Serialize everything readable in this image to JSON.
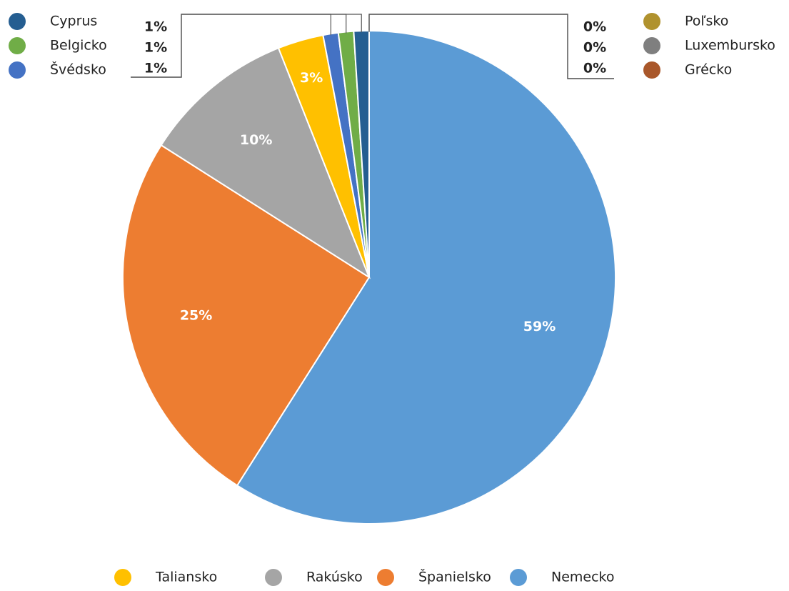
{
  "chart_data": {
    "type": "pie",
    "categories": [
      "Nemecko",
      "Španielsko",
      "Rakúsko",
      "Taliansko",
      "Švédsko",
      "Belgicko",
      "Cyprus",
      "Poľsko",
      "Luxembursko",
      "Grécko"
    ],
    "values": [
      59,
      25,
      10,
      3,
      1,
      1,
      1,
      0,
      0,
      0
    ],
    "value_labels": [
      "59%",
      "25%",
      "10%",
      "3%",
      "1%",
      "1%",
      "1%",
      "0%",
      "0%",
      "0%"
    ],
    "colors": [
      "#5b9bd5",
      "#ed7d31",
      "#a5a5a5",
      "#ffc000",
      "#4472c4",
      "#70ad47",
      "#255e91",
      "#b0922e",
      "#7f7f7f",
      "#a9572a"
    ]
  }
}
